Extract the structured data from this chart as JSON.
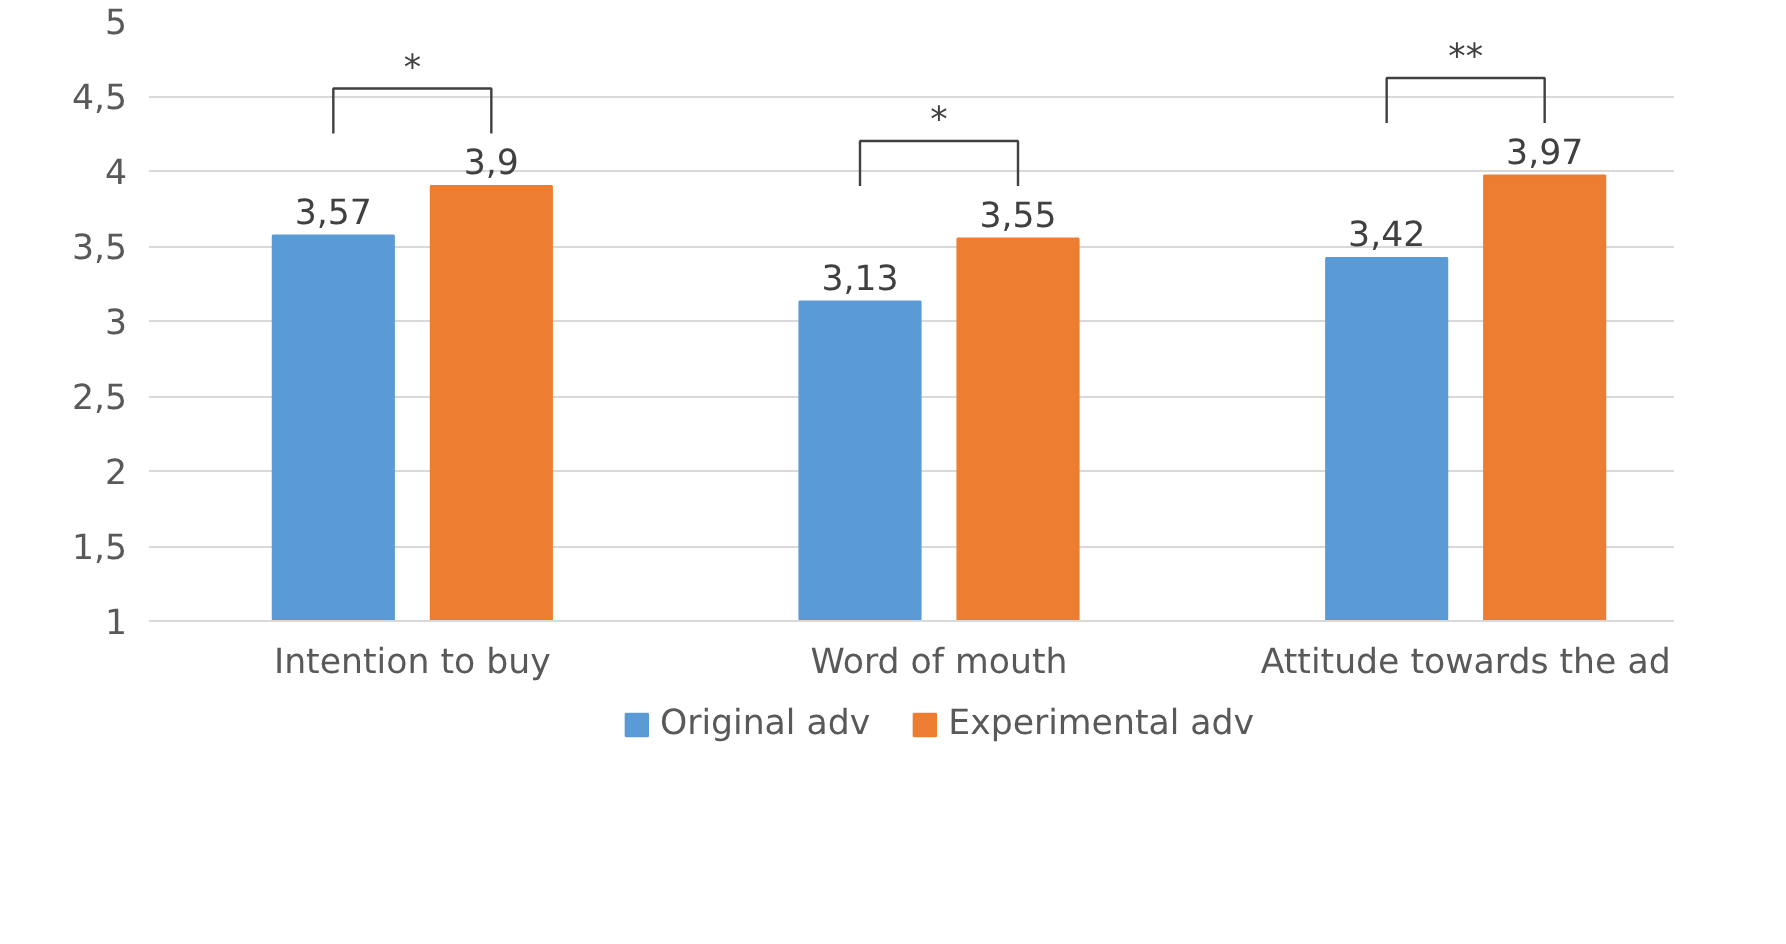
{
  "chart_data": {
    "type": "bar",
    "categories": [
      "Intention to buy",
      "Word of mouth",
      "Attitude towards the ad"
    ],
    "series": [
      {
        "name": "Original adv",
        "color": "#5b9bd5",
        "values": [
          3.57,
          3.13,
          3.42
        ],
        "value_labels": [
          "3,57",
          "3,13",
          "3,42"
        ]
      },
      {
        "name": "Experimental adv",
        "color": "#ed7d31",
        "values": [
          3.9,
          3.55,
          3.97
        ],
        "value_labels": [
          "3,9",
          "3,55",
          "3,97"
        ]
      }
    ],
    "ylim": [
      1,
      5
    ],
    "yticks": [
      1,
      {
        "value": 1.5,
        "label": "1,5"
      },
      2,
      {
        "value": 2.5,
        "label": "2,5"
      },
      3,
      {
        "value": 3.5,
        "label": "3,5"
      },
      4,
      {
        "value": 4.5,
        "label": "4,5"
      },
      5
    ],
    "grid": "y",
    "legend": "bottom",
    "annotations": [
      "*",
      "*",
      "**"
    ]
  }
}
